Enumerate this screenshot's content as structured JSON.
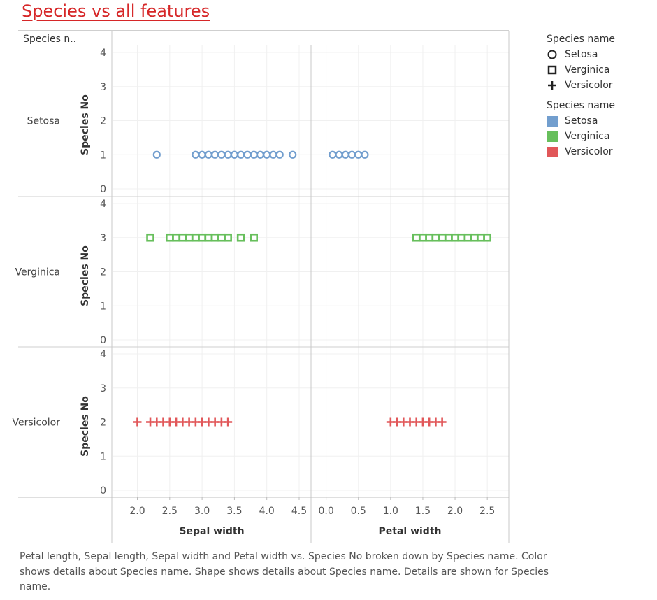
{
  "title": "Species vs all features",
  "row_header_label": "Species n..",
  "legend_shape": {
    "title": "Species name",
    "items": [
      {
        "label": "Setosa",
        "icon": "circle"
      },
      {
        "label": "Verginica",
        "icon": "square"
      },
      {
        "label": "Versicolor",
        "icon": "plus"
      }
    ]
  },
  "legend_color": {
    "title": "Species name",
    "items": [
      {
        "label": "Setosa",
        "color": "#729ece"
      },
      {
        "label": "Verginica",
        "color": "#67bf5c"
      },
      {
        "label": "Versicolor",
        "color": "#e15759"
      }
    ]
  },
  "caption": "Petal length, Sepal length, Sepal width and Petal width vs. Species No broken down by Species name.  Color shows details about Species name.  Shape shows details about Species name.  Details are shown for Species name.",
  "chart_data": {
    "type": "scatter",
    "ylabel": "Species No",
    "ylim": [
      0,
      4
    ],
    "yticks": [
      0,
      1,
      2,
      3,
      4
    ],
    "rows": [
      {
        "name": "Setosa",
        "y": 1,
        "shape": "circle",
        "color": "#729ece"
      },
      {
        "name": "Verginica",
        "y": 3,
        "shape": "square",
        "color": "#67bf5c"
      },
      {
        "name": "Versicolor",
        "y": 2,
        "shape": "plus",
        "color": "#e15759"
      }
    ],
    "columns": [
      {
        "xlabel": "Sepal width",
        "xlim": [
          1.8,
          4.5
        ],
        "xticks": [
          "2.0",
          "2.5",
          "3.0",
          "3.5",
          "4.0",
          "4.5"
        ],
        "series": {
          "Setosa": [
            2.3,
            2.9,
            3.0,
            3.1,
            3.2,
            3.3,
            3.4,
            3.5,
            3.6,
            3.7,
            3.8,
            3.9,
            4.0,
            4.1,
            4.2,
            4.4
          ],
          "Verginica": [
            2.2,
            2.5,
            2.6,
            2.7,
            2.8,
            2.9,
            3.0,
            3.1,
            3.2,
            3.3,
            3.4,
            3.6,
            3.8
          ],
          "Versicolor": [
            2.0,
            2.2,
            2.3,
            2.4,
            2.5,
            2.6,
            2.7,
            2.8,
            2.9,
            3.0,
            3.1,
            3.2,
            3.3,
            3.4
          ]
        }
      },
      {
        "xlabel": "Petal width",
        "xlim": [
          -0.05,
          2.65
        ],
        "xticks": [
          "0.0",
          "0.5",
          "1.0",
          "1.5",
          "2.0",
          "2.5"
        ],
        "series": {
          "Setosa": [
            0.1,
            0.2,
            0.3,
            0.4,
            0.5,
            0.6
          ],
          "Verginica": [
            1.4,
            1.5,
            1.6,
            1.7,
            1.8,
            1.9,
            2.0,
            2.1,
            2.2,
            2.3,
            2.4,
            2.5
          ],
          "Versicolor": [
            1.0,
            1.1,
            1.2,
            1.3,
            1.4,
            1.5,
            1.6,
            1.7,
            1.8
          ]
        }
      }
    ],
    "grid": true
  }
}
